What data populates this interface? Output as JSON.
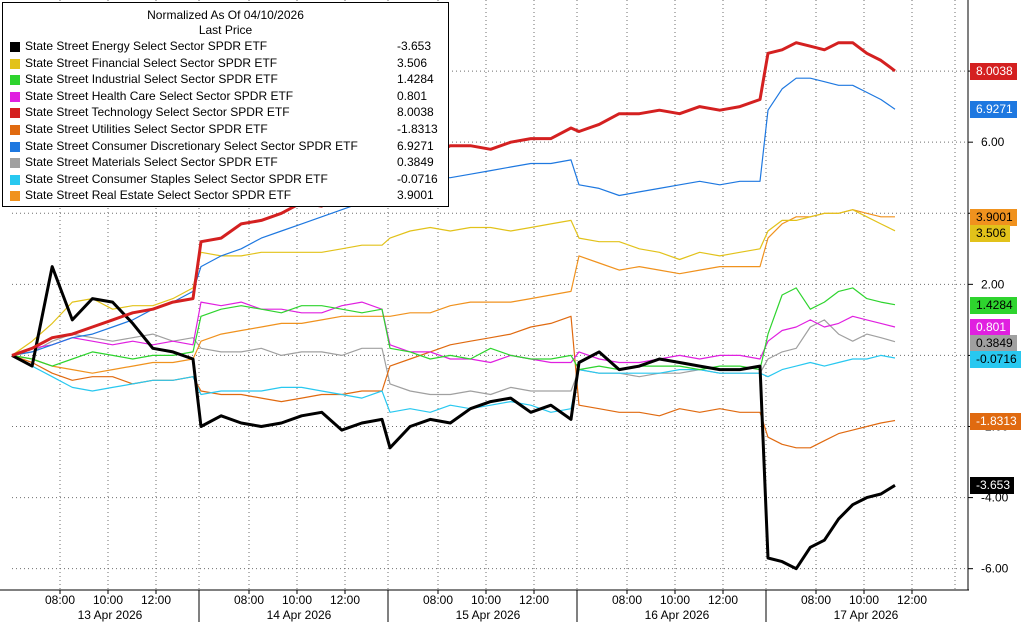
{
  "legend": {
    "title": "Normalized As Of 04/10/2026",
    "subtitle": "Last Price"
  },
  "colors": {
    "grid": "#6e6e6e",
    "axis": "#000000",
    "background": "#ffffff"
  },
  "chart_data": {
    "type": "line",
    "title": "Normalized As Of 04/10/2026",
    "ylim": [
      -6.6,
      10.0
    ],
    "y_ticks": [
      -6,
      -4,
      -2,
      0,
      2,
      4,
      6,
      8
    ],
    "y_tick_labels": [
      "-6.00",
      "-4.00",
      "-2.00",
      "",
      "2.00",
      "",
      "6.00",
      ""
    ],
    "grid": true,
    "legend_position": "top-left",
    "x_time_labels": [
      "08:00",
      "10:00",
      "12:00",
      "08:00",
      "10:00",
      "12:00",
      "08:00",
      "10:00",
      "12:00",
      "08:00",
      "10:00",
      "12:00",
      "08:00",
      "10:00",
      "12:00"
    ],
    "x_day_labels": [
      "13 Apr 2026",
      "14 Apr 2026",
      "15 Apr 2026",
      "16 Apr 2026",
      "17 Apr 2026"
    ],
    "days": 5,
    "series": [
      {
        "name": "State Street Energy Select Sector SPDR ETF",
        "last": "-3.653",
        "color": "#000000",
        "width": 3,
        "values": [
          0.0,
          -0.3,
          2.5,
          1.0,
          1.6,
          1.5,
          0.9,
          0.2,
          0.1,
          -0.1,
          -2.0,
          -1.7,
          -1.9,
          -2.0,
          -1.9,
          -1.7,
          -1.6,
          -2.1,
          -1.9,
          -1.8,
          -2.6,
          -2.0,
          -1.8,
          -1.9,
          -1.5,
          -1.3,
          -1.2,
          -1.6,
          -1.4,
          -1.8,
          -0.2,
          0.1,
          -0.4,
          -0.3,
          -0.1,
          -0.2,
          -0.3,
          -0.4,
          -0.4,
          -0.3,
          -5.7,
          -5.8,
          -6.0,
          -5.4,
          -5.2,
          -4.6,
          -4.2,
          -4.0,
          -3.9,
          -3.653
        ]
      },
      {
        "name": "State Street Financial Select Sector SPDR ETF",
        "last": "3.506",
        "color": "#e2c21a",
        "width": 1.2,
        "values": [
          0.0,
          0.4,
          0.9,
          1.5,
          1.6,
          1.3,
          1.4,
          1.4,
          1.6,
          1.9,
          2.9,
          2.8,
          2.8,
          2.9,
          2.9,
          2.9,
          2.9,
          3.0,
          3.1,
          3.1,
          3.3,
          3.5,
          3.6,
          3.5,
          3.6,
          3.6,
          3.5,
          3.6,
          3.7,
          3.8,
          3.3,
          3.2,
          3.2,
          3.0,
          2.9,
          2.7,
          2.9,
          2.8,
          2.9,
          3.0,
          3.5,
          3.8,
          3.8,
          3.9,
          4.0,
          4.0,
          4.1,
          3.9,
          3.7,
          3.506
        ]
      },
      {
        "name": "State Street Industrial Select Sector SPDR ETF",
        "last": "1.4284",
        "color": "#2ed42e",
        "width": 1.2,
        "values": [
          0.0,
          -0.1,
          -0.3,
          -0.1,
          0.1,
          0.0,
          -0.1,
          0.0,
          0.0,
          0.1,
          1.1,
          1.3,
          1.4,
          1.3,
          1.2,
          1.4,
          1.4,
          1.3,
          1.2,
          1.3,
          0.2,
          0.1,
          -0.1,
          0.0,
          -0.1,
          0.2,
          0.0,
          -0.1,
          -0.1,
          0.0,
          -0.4,
          -0.3,
          -0.4,
          -0.3,
          -0.3,
          -0.3,
          -0.4,
          -0.3,
          -0.3,
          -0.4,
          0.6,
          1.7,
          1.9,
          1.3,
          1.5,
          1.8,
          1.9,
          1.6,
          1.5,
          1.4284
        ]
      },
      {
        "name": "State Street Health Care Select Sector SPDR ETF",
        "last": "0.801",
        "color": "#e020e0",
        "width": 1.2,
        "values": [
          0.0,
          0.2,
          0.3,
          0.5,
          0.4,
          0.3,
          0.4,
          0.3,
          0.4,
          0.3,
          1.5,
          1.4,
          1.5,
          1.3,
          1.3,
          1.2,
          1.2,
          1.4,
          1.5,
          1.3,
          0.3,
          0.1,
          0.1,
          -0.1,
          -0.1,
          -0.2,
          0.0,
          -0.1,
          -0.2,
          -0.2,
          0.1,
          -0.1,
          -0.2,
          -0.2,
          -0.1,
          0.0,
          -0.1,
          0.0,
          0.0,
          -0.1,
          0.4,
          0.7,
          0.8,
          1.0,
          0.8,
          0.9,
          1.1,
          1.0,
          0.9,
          0.801
        ]
      },
      {
        "name": "State Street Technology Select Sector SPDR ETF",
        "last": "8.0038",
        "color": "#d42020",
        "width": 3,
        "values": [
          0.0,
          0.2,
          0.5,
          0.6,
          0.8,
          1.0,
          1.2,
          1.3,
          1.5,
          1.6,
          3.2,
          3.3,
          3.7,
          3.8,
          4.0,
          4.3,
          4.2,
          4.5,
          4.7,
          5.0,
          5.4,
          5.6,
          5.6,
          5.9,
          5.9,
          5.8,
          6.0,
          6.1,
          6.1,
          6.4,
          6.3,
          6.5,
          6.8,
          6.8,
          6.9,
          6.8,
          7.0,
          6.9,
          7.0,
          7.2,
          8.5,
          8.6,
          8.8,
          8.7,
          8.6,
          8.8,
          8.8,
          8.5,
          8.3,
          8.0038
        ]
      },
      {
        "name": "State Street Utilities Select Sector SPDR ETF",
        "last": "-1.8313",
        "color": "#e06a10",
        "width": 1.2,
        "values": [
          0.0,
          -0.2,
          -0.5,
          -0.7,
          -0.6,
          -0.6,
          -0.8,
          -0.7,
          -0.7,
          -0.6,
          -1.0,
          -1.1,
          -1.1,
          -1.2,
          -1.3,
          -1.2,
          -1.1,
          -1.1,
          -1.0,
          -1.0,
          -0.3,
          -0.1,
          0.1,
          0.3,
          0.4,
          0.5,
          0.6,
          0.8,
          0.9,
          1.1,
          -1.4,
          -1.5,
          -1.6,
          -1.6,
          -1.7,
          -1.5,
          -1.6,
          -1.5,
          -1.6,
          -1.6,
          -2.3,
          -2.5,
          -2.6,
          -2.6,
          -2.4,
          -2.2,
          -2.1,
          -2.0,
          -1.9,
          -1.8313
        ]
      },
      {
        "name": "State Street Consumer Discretionary Select Sector SPDR ETF",
        "last": "6.9271",
        "color": "#1e78e0",
        "width": 1.2,
        "values": [
          0.0,
          0.1,
          0.3,
          0.5,
          0.6,
          0.8,
          1.0,
          1.3,
          1.5,
          1.8,
          2.5,
          2.8,
          3.0,
          3.3,
          3.5,
          3.7,
          3.9,
          4.1,
          4.3,
          4.6,
          4.8,
          4.9,
          5.0,
          5.0,
          5.1,
          5.2,
          5.3,
          5.4,
          5.4,
          5.5,
          4.8,
          4.7,
          4.5,
          4.6,
          4.7,
          4.8,
          4.9,
          4.8,
          4.9,
          4.9,
          6.9,
          7.5,
          7.8,
          7.8,
          7.7,
          7.6,
          7.6,
          7.4,
          7.2,
          6.9271
        ]
      },
      {
        "name": "State Street Materials Select Sector SPDR ETF",
        "last": "0.3849",
        "color": "#a0a0a0",
        "width": 1.2,
        "values": [
          0.0,
          0.1,
          0.4,
          0.6,
          0.5,
          0.4,
          0.5,
          0.6,
          0.4,
          0.5,
          0.2,
          0.1,
          0.1,
          0.2,
          0.0,
          0.1,
          0.1,
          0.0,
          0.2,
          0.2,
          -0.8,
          -1.0,
          -1.1,
          -1.1,
          -1.0,
          -1.1,
          -0.9,
          -1.0,
          -1.0,
          -1.0,
          -0.4,
          -0.5,
          -0.5,
          -0.6,
          -0.5,
          -0.5,
          -0.4,
          -0.5,
          -0.5,
          -0.5,
          -0.1,
          0.1,
          0.2,
          0.8,
          1.0,
          0.6,
          0.4,
          0.6,
          0.5,
          0.3849
        ]
      },
      {
        "name": "State Street Consumer Staples Select Sector SPDR ETF",
        "last": "-0.0716",
        "color": "#28c8f0",
        "width": 1.2,
        "values": [
          0.0,
          -0.3,
          -0.6,
          -0.9,
          -1.0,
          -0.9,
          -0.8,
          -0.7,
          -0.7,
          -0.6,
          -1.1,
          -1.0,
          -1.0,
          -1.0,
          -0.9,
          -0.9,
          -1.0,
          -1.1,
          -1.2,
          -1.0,
          -1.6,
          -1.5,
          -1.6,
          -1.4,
          -1.5,
          -1.4,
          -1.3,
          -1.4,
          -1.6,
          -1.5,
          -0.4,
          -0.5,
          -0.5,
          -0.5,
          -0.5,
          -0.4,
          -0.4,
          -0.5,
          -0.5,
          -0.5,
          -0.6,
          -0.4,
          -0.3,
          -0.2,
          -0.3,
          -0.2,
          -0.1,
          -0.1,
          0.0,
          -0.0716
        ]
      },
      {
        "name": "State Street Real Estate Select Sector SPDR ETF",
        "last": "3.9001",
        "color": "#f0921e",
        "width": 1.2,
        "values": [
          0.0,
          -0.1,
          -0.3,
          -0.4,
          -0.5,
          -0.4,
          -0.3,
          -0.2,
          -0.2,
          -0.1,
          0.4,
          0.6,
          0.7,
          0.8,
          0.9,
          0.9,
          1.0,
          1.1,
          1.1,
          1.1,
          1.1,
          1.2,
          1.2,
          1.4,
          1.5,
          1.5,
          1.5,
          1.6,
          1.7,
          1.8,
          2.8,
          2.6,
          2.4,
          2.5,
          2.4,
          2.3,
          2.4,
          2.5,
          2.5,
          2.5,
          3.3,
          3.7,
          3.9,
          3.9,
          4.0,
          4.0,
          4.1,
          4.0,
          3.9,
          3.9001
        ]
      }
    ]
  }
}
